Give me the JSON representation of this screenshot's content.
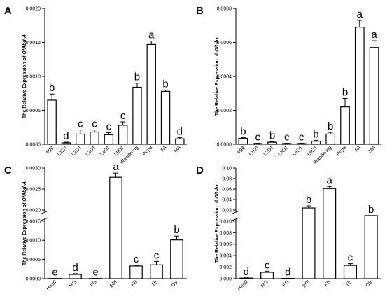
{
  "chart_data": [
    {
      "type": "bar",
      "panel": "A",
      "ylabel": "The Relative Expression of OfAbd-A",
      "ylabel_prefix": "The Relative Expression of ",
      "ylabel_gene": "OfAbd-A",
      "categories": [
        "egg",
        "L1D1",
        "L2D1",
        "L3D1",
        "L4D1",
        "L5D1",
        "Wandering",
        "Pupa",
        "FA",
        "MA"
      ],
      "values": [
        0.00065,
        2e-05,
        0.00015,
        0.00018,
        0.00014,
        0.00028,
        0.00084,
        0.00147,
        0.00078,
        8e-05
      ],
      "errors": [
        9e-05,
        1e-05,
        6e-05,
        3e-05,
        3e-05,
        5e-05,
        6e-05,
        5e-05,
        2e-05,
        2e-05
      ],
      "letters": [
        "b",
        "d",
        "c",
        "c",
        "c",
        "c",
        "b",
        "a",
        "b",
        "d"
      ],
      "ylim": [
        0,
        0.002
      ],
      "ticks": [
        0,
        0.0005,
        0.001,
        0.0015,
        0.002
      ],
      "tick_labels": [
        "0.0000",
        "0.0005",
        "0.0010",
        "0.0015",
        "0.0020"
      ]
    },
    {
      "type": "bar",
      "panel": "B",
      "ylabel": "The Relative Expression of OfUbx",
      "ylabel_prefix": "The Relative Expression of ",
      "ylabel_gene": "OfUbx",
      "categories": [
        "egg",
        "L1D1",
        "L2D1",
        "L3D1",
        "L4D1",
        "L5D1",
        "Wandering",
        "Pupa",
        "FA",
        "MA"
      ],
      "values": [
        3.5e-05,
        4e-06,
        1.2e-05,
        4e-06,
        4e-06,
        1.8e-05,
        6e-05,
        0.00022,
        0.00069,
        0.00057
      ],
      "errors": [
        5e-06,
        2e-06,
        3e-06,
        2e-06,
        2e-06,
        5e-06,
        1e-05,
        5e-05,
        4e-05,
        4e-05
      ],
      "letters": [
        "b",
        "c",
        "b",
        "c",
        "c",
        "b",
        "b",
        "b",
        "a",
        "a"
      ],
      "ylim": [
        0,
        0.0008
      ],
      "ticks": [
        0,
        0.0002,
        0.0004,
        0.0006,
        0.0008
      ],
      "tick_labels": [
        "0.0000",
        "0.0002",
        "0.0004",
        "0.0006",
        "0.0008"
      ]
    },
    {
      "type": "bar",
      "panel": "C",
      "ylabel": "The Relative Expression of OfAbd-A",
      "ylabel_prefix": "The Relative Expression of ",
      "ylabel_gene": "OfAbd-A",
      "categories": [
        "Head",
        "MG",
        "FG",
        "EPI",
        "FB",
        "TE",
        "OV"
      ],
      "values": [
        5e-06,
        0.00011,
        5e-06,
        0.00278,
        0.00033,
        0.00036,
        0.00101
      ],
      "errors": [
        2e-06,
        2e-05,
        2e-06,
        0.0001,
        2e-05,
        9e-05,
        0.0001
      ],
      "letters": [
        "e",
        "d",
        "e",
        "a",
        "c",
        "c",
        "b"
      ],
      "axis_break": {
        "lower": [
          0,
          0.0015
        ],
        "upper": [
          0.002,
          0.003
        ]
      },
      "ticks": [
        0,
        0.0005,
        0.001,
        0.0015,
        0.002,
        0.0025,
        0.003
      ],
      "tick_labels": [
        "0.0000",
        "0.0005",
        "0.0010",
        "0.0015",
        "0.0020",
        "0.0025",
        "0.0030"
      ]
    },
    {
      "type": "bar",
      "panel": "D",
      "ylabel": "The Relative Expression of OfUbx",
      "ylabel_prefix": "The Relative Expression of ",
      "ylabel_gene": "OfUbx",
      "categories": [
        "Head",
        "MG",
        "FG",
        "EPI",
        "FB",
        "TE",
        "OV"
      ],
      "values": [
        0.0001,
        0.0011,
        5e-05,
        0.024,
        0.061,
        0.0023,
        0.0101
      ],
      "errors": [
        5e-05,
        0.0002,
        3e-05,
        0.004,
        0.004,
        0.0003,
        0.0003
      ],
      "letters": [
        "d",
        "c",
        "d",
        "b",
        "a",
        "c",
        "b"
      ],
      "axis_break": {
        "lower": [
          0,
          0.01
        ],
        "upper": [
          0.02,
          0.1
        ]
      },
      "ticks": [
        0,
        0.002,
        0.004,
        0.006,
        0.008,
        0.01,
        0.02,
        0.04,
        0.06,
        0.08,
        0.1
      ],
      "tick_labels": [
        "0.000",
        "0.002",
        "0.004",
        "0.006",
        "0.008",
        "0.010",
        "0.02",
        "0.04",
        "0.06",
        "0.08",
        "0.10"
      ]
    }
  ]
}
